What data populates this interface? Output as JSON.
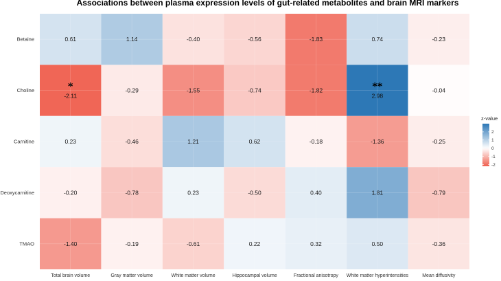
{
  "chart_data": {
    "type": "heatmap",
    "title": "Associations between plasma expression levels of gut-related metabolites and brain MRI markers",
    "x_categories": [
      "Total brain volume",
      "Gray matter volume",
      "White matter volume",
      "Hippocampal volume",
      "Fractional anisotropy",
      "White matter hyperintensities",
      "Mean diffusivity"
    ],
    "y_categories": [
      "Betaine",
      "Choline",
      "Carnitine",
      "Deoxycarnitine",
      "TMAO"
    ],
    "values": [
      [
        0.61,
        1.14,
        -0.4,
        -0.56,
        -1.83,
        0.74,
        -0.23
      ],
      [
        -2.11,
        -0.29,
        -1.55,
        -0.74,
        -1.82,
        2.98,
        -0.04
      ],
      [
        0.23,
        -0.46,
        1.21,
        0.62,
        -0.18,
        -1.36,
        -0.25
      ],
      [
        -0.2,
        -0.78,
        0.23,
        -0.5,
        0.4,
        1.81,
        -0.79
      ],
      [
        -1.4,
        -0.19,
        -0.61,
        0.22,
        0.32,
        0.5,
        -0.36
      ]
    ],
    "labels": [
      [
        "0.61",
        "1.14",
        "-0.40",
        "-0.56",
        "-1.83",
        "0.74",
        "-0.23"
      ],
      [
        "-2.11",
        "-0.29",
        "-1.55",
        "-0.74",
        "-1.82",
        "2.98",
        "-0.04"
      ],
      [
        "0.23",
        "-0.46",
        "1.21",
        "0.62",
        "-0.18",
        "-1.36",
        "-0.25"
      ],
      [
        "-0.20",
        "-0.78",
        "0.23",
        "-0.50",
        "0.40",
        "1.81",
        "-0.79"
      ],
      [
        "-1.40",
        "-0.19",
        "-0.61",
        "0.22",
        "0.32",
        "0.50",
        "-0.36"
      ]
    ],
    "significance": [
      [
        "",
        "",
        "",
        "",
        "",
        "",
        ""
      ],
      [
        "*",
        "",
        "",
        "",
        "",
        "**",
        ""
      ],
      [
        "",
        "",
        "",
        "",
        "",
        "",
        ""
      ],
      [
        "",
        "",
        "",
        "",
        "",
        "",
        ""
      ],
      [
        "",
        "",
        "",
        "",
        "",
        "",
        ""
      ]
    ],
    "legend": {
      "title": "z-value",
      "ticks": [
        2,
        1,
        0,
        -1,
        -2
      ],
      "tick_labels": [
        "2",
        "1",
        "0",
        "-1",
        "-2"
      ],
      "range": [
        -2.2,
        3.0
      ],
      "colors": {
        "low": "#ef5f4f",
        "mid": "#ffffff",
        "high": "#2c77b6"
      },
      "placement": "right"
    },
    "grid": true
  }
}
